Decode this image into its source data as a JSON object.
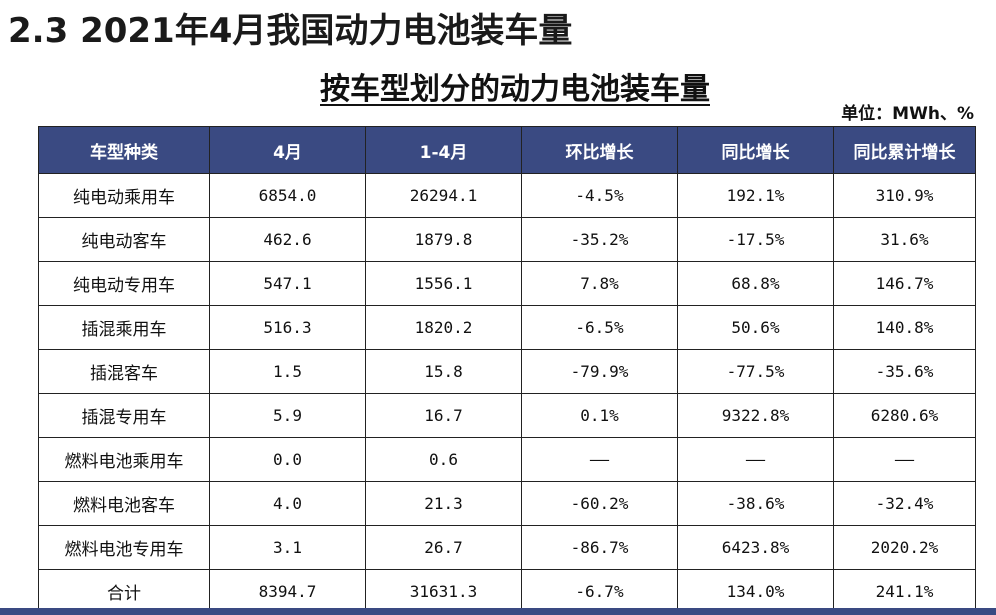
{
  "heading": {
    "section_title": "2.3 2021年4月我国动力电池装车量",
    "table_title": "按车型划分的动力电池装车量",
    "unit": "单位：MWh、%"
  },
  "table": {
    "header_color": "#3a4a82",
    "columns": [
      "车型种类",
      "4月",
      "1-4月",
      "环比增长",
      "同比增长",
      "同比累计增长"
    ],
    "rows": [
      [
        "纯电动乘用车",
        "6854.0",
        "26294.1",
        "-4.5%",
        "192.1%",
        "310.9%"
      ],
      [
        "纯电动客车",
        "462.6",
        "1879.8",
        "-35.2%",
        "-17.5%",
        "31.6%"
      ],
      [
        "纯电动专用车",
        "547.1",
        "1556.1",
        "7.8%",
        "68.8%",
        "146.7%"
      ],
      [
        "插混乘用车",
        "516.3",
        "1820.2",
        "-6.5%",
        "50.6%",
        "140.8%"
      ],
      [
        "插混客车",
        "1.5",
        "15.8",
        "-79.9%",
        "-77.5%",
        "-35.6%"
      ],
      [
        "插混专用车",
        "5.9",
        "16.7",
        "0.1%",
        "9322.8%",
        "6280.6%"
      ],
      [
        "燃料电池乘用车",
        "0.0",
        "0.6",
        "——",
        "——",
        "——"
      ],
      [
        "燃料电池客车",
        "4.0",
        "21.3",
        "-60.2%",
        "-38.6%",
        "-32.4%"
      ],
      [
        "燃料电池专用车",
        "3.1",
        "26.7",
        "-86.7%",
        "6423.8%",
        "2020.2%"
      ],
      [
        "合计",
        "8394.7",
        "31631.3",
        "-6.7%",
        "134.0%",
        "241.1%"
      ]
    ]
  }
}
